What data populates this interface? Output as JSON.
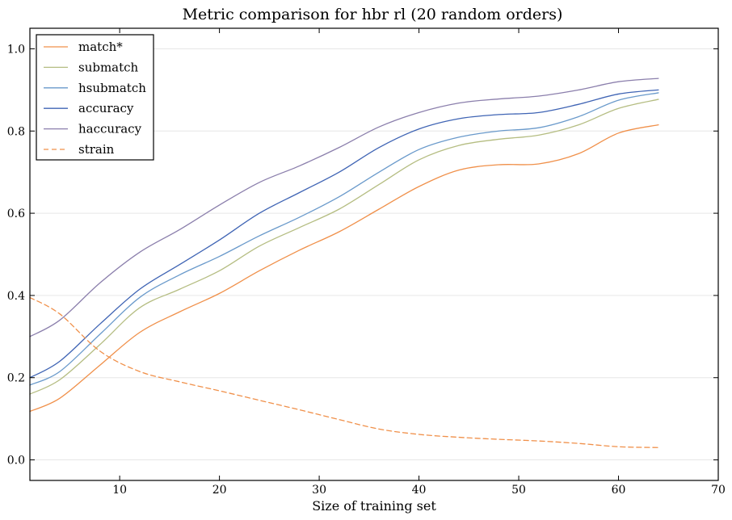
{
  "chart_data": {
    "type": "line",
    "title": "Metric comparison for hbr rl (20 random orders)",
    "xlabel": "Size of training set",
    "ylabel": "",
    "xlim": [
      1,
      70
    ],
    "ylim": [
      -0.05,
      1.05
    ],
    "xticks": [
      10,
      20,
      30,
      40,
      50,
      60,
      70
    ],
    "xtick_labels": [
      "10",
      "20",
      "30",
      "40",
      "50",
      "60",
      "70"
    ],
    "yticks": [
      0.0,
      0.2,
      0.4,
      0.6,
      0.8,
      1.0
    ],
    "ytick_labels": [
      "0.0",
      "0.2",
      "0.4",
      "0.6",
      "0.8",
      "1.0"
    ],
    "grid": "horizontal",
    "legend": "top-left",
    "x": [
      1,
      4,
      8,
      12,
      16,
      20,
      24,
      28,
      32,
      36,
      40,
      44,
      48,
      52,
      56,
      60,
      64
    ],
    "series": [
      {
        "name": "match*",
        "color": "#f0904a",
        "dash": "solid",
        "values": [
          0.118,
          0.15,
          0.23,
          0.31,
          0.36,
          0.405,
          0.46,
          0.51,
          0.555,
          0.61,
          0.665,
          0.705,
          0.718,
          0.72,
          0.745,
          0.795,
          0.815
        ]
      },
      {
        "name": "submatch",
        "color": "#b5bd82",
        "dash": "solid",
        "values": [
          0.16,
          0.195,
          0.28,
          0.37,
          0.415,
          0.46,
          0.52,
          0.565,
          0.61,
          0.67,
          0.73,
          0.765,
          0.78,
          0.79,
          0.815,
          0.855,
          0.877
        ]
      },
      {
        "name": "hsubmatch",
        "color": "#6a9acb",
        "dash": "solid",
        "values": [
          0.182,
          0.215,
          0.305,
          0.395,
          0.45,
          0.495,
          0.545,
          0.59,
          0.64,
          0.7,
          0.755,
          0.785,
          0.8,
          0.808,
          0.835,
          0.875,
          0.893
        ]
      },
      {
        "name": "accuracy",
        "color": "#3f64b4",
        "dash": "solid",
        "values": [
          0.2,
          0.24,
          0.33,
          0.415,
          0.475,
          0.535,
          0.6,
          0.65,
          0.7,
          0.76,
          0.805,
          0.83,
          0.84,
          0.845,
          0.865,
          0.89,
          0.9
        ]
      },
      {
        "name": "haccuracy",
        "color": "#8b7fac",
        "dash": "solid",
        "values": [
          0.3,
          0.34,
          0.43,
          0.505,
          0.56,
          0.62,
          0.675,
          0.715,
          0.76,
          0.81,
          0.845,
          0.868,
          0.878,
          0.885,
          0.9,
          0.92,
          0.928
        ]
      },
      {
        "name": "strain",
        "color": "#f0904a",
        "dash": "dashed",
        "values": [
          0.395,
          0.355,
          0.265,
          0.215,
          0.19,
          0.168,
          0.145,
          0.122,
          0.098,
          0.075,
          0.062,
          0.055,
          0.05,
          0.046,
          0.04,
          0.032,
          0.03
        ]
      }
    ]
  }
}
